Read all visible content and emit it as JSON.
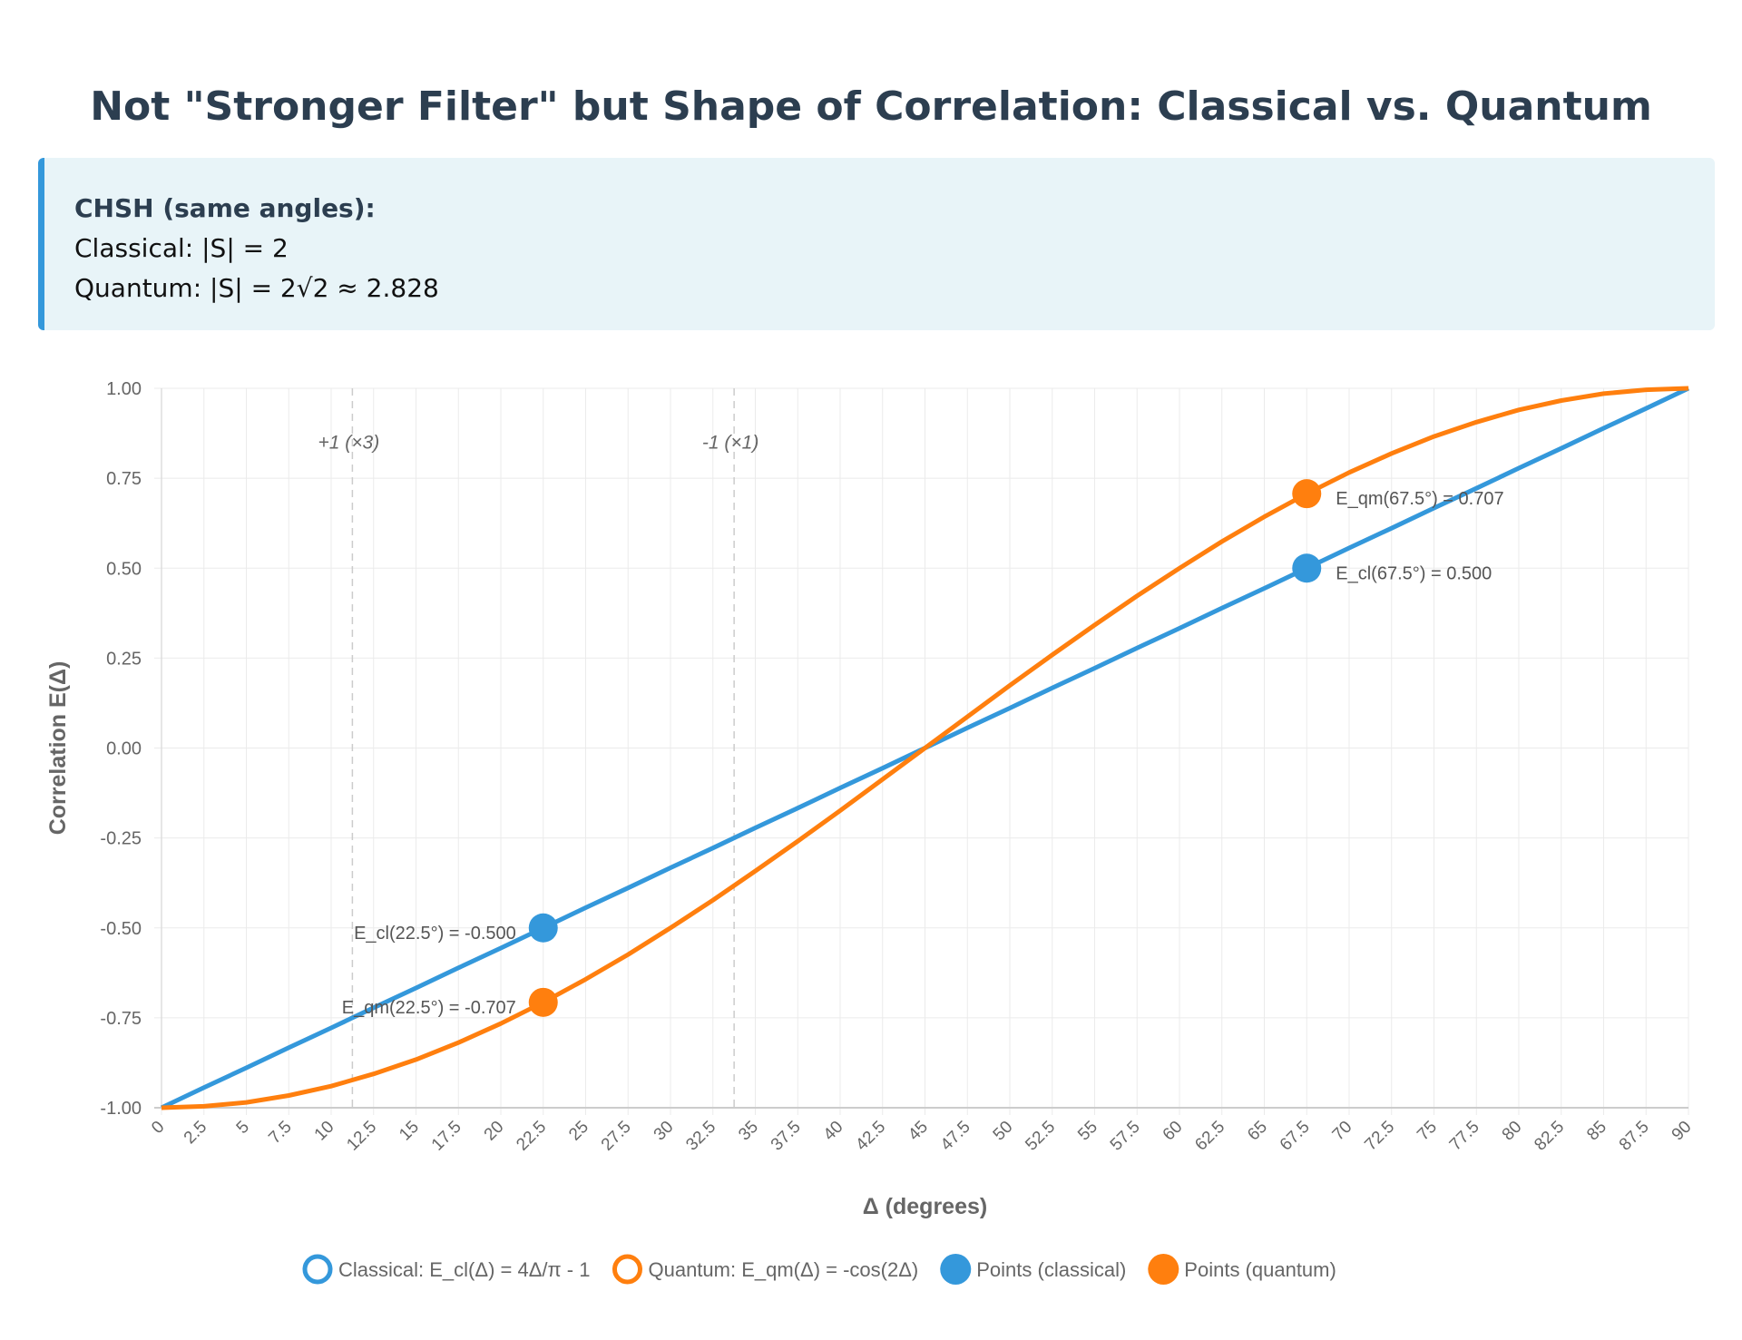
{
  "title": "Not \"Stronger Filter\" but Shape of Correlation: Classical vs. Quantum",
  "info_box": {
    "heading": "CHSH (same angles):",
    "lines": [
      "Classical: |S| = 2",
      "Quantum: |S| = 2√2 ≈ 2.828"
    ]
  },
  "colors": {
    "classical": "#3498db",
    "quantum": "#ff7f0e",
    "info_accent": "#3498db",
    "info_bg": "#e8f4f8"
  },
  "chart_data": {
    "type": "line",
    "xlabel": "Δ (degrees)",
    "ylabel": "Correlation E(Δ)",
    "xlim": [
      0,
      90
    ],
    "ylim": [
      -1,
      1
    ],
    "grid": true,
    "legend_position": "bottom",
    "x_ticks": [
      "0",
      "2.5",
      "5",
      "7.5",
      "10",
      "12.5",
      "15",
      "17.5",
      "20",
      "22.5",
      "25",
      "27.5",
      "30",
      "32.5",
      "35",
      "37.5",
      "40",
      "42.5",
      "45",
      "47.5",
      "50",
      "52.5",
      "55",
      "57.5",
      "60",
      "62.5",
      "65",
      "67.5",
      "70",
      "72.5",
      "75",
      "77.5",
      "80",
      "82.5",
      "85",
      "87.5",
      "90"
    ],
    "y_ticks": [
      "-1.00",
      "-0.75",
      "-0.50",
      "-0.25",
      "0.00",
      "0.25",
      "0.50",
      "0.75",
      "1.00"
    ],
    "x": [
      0,
      2.5,
      5,
      7.5,
      10,
      12.5,
      15,
      17.5,
      20,
      22.5,
      25,
      27.5,
      30,
      32.5,
      35,
      37.5,
      40,
      42.5,
      45,
      47.5,
      50,
      52.5,
      55,
      57.5,
      60,
      62.5,
      65,
      67.5,
      70,
      72.5,
      75,
      77.5,
      80,
      82.5,
      85,
      87.5,
      90
    ],
    "series": [
      {
        "name": "Classical: E_cl(Δ) = 4Δ/π - 1",
        "color": "#3498db",
        "values": [
          -1,
          -0.944,
          -0.889,
          -0.833,
          -0.778,
          -0.722,
          -0.667,
          -0.611,
          -0.556,
          -0.5,
          -0.444,
          -0.389,
          -0.333,
          -0.278,
          -0.222,
          -0.167,
          -0.111,
          -0.056,
          0,
          0.056,
          0.111,
          0.167,
          0.222,
          0.278,
          0.333,
          0.389,
          0.444,
          0.5,
          0.556,
          0.611,
          0.667,
          0.722,
          0.778,
          0.833,
          0.889,
          0.944,
          1
        ]
      },
      {
        "name": "Quantum: E_qm(Δ) = -cos(2Δ)",
        "color": "#ff7f0e",
        "values": [
          -1,
          -0.996,
          -0.985,
          -0.966,
          -0.94,
          -0.906,
          -0.866,
          -0.819,
          -0.766,
          -0.707,
          -0.643,
          -0.574,
          -0.5,
          -0.423,
          -0.342,
          -0.259,
          -0.174,
          -0.087,
          0,
          0.087,
          0.174,
          0.259,
          0.342,
          0.423,
          0.5,
          0.574,
          0.643,
          0.707,
          0.766,
          0.819,
          0.866,
          0.906,
          0.94,
          0.966,
          0.985,
          0.996,
          1
        ]
      }
    ],
    "points": [
      {
        "series": "Points (classical)",
        "color": "#3498db",
        "data": [
          {
            "x": 22.5,
            "y": -0.5,
            "label": "E_cl(22.5°) = -0.500",
            "side": "left"
          },
          {
            "x": 67.5,
            "y": 0.5,
            "label": "E_cl(67.5°) = 0.500",
            "side": "right"
          }
        ]
      },
      {
        "series": "Points (quantum)",
        "color": "#ff7f0e",
        "data": [
          {
            "x": 22.5,
            "y": -0.707,
            "label": "E_qm(22.5°) = -0.707",
            "side": "left"
          },
          {
            "x": 67.5,
            "y": 0.707,
            "label": "E_qm(67.5°) = 0.707",
            "side": "right"
          }
        ]
      }
    ],
    "vlines": [
      {
        "x": 11.25,
        "label": "+1 (×3)",
        "label_y": 0.85
      },
      {
        "x": 33.75,
        "label": "-1 (×1)",
        "label_y": 0.85
      }
    ],
    "legend": [
      {
        "label": "Classical: E_cl(Δ) = 4Δ/π - 1",
        "color": "#3498db",
        "style": "ring"
      },
      {
        "label": "Quantum: E_qm(Δ) = -cos(2Δ)",
        "color": "#ff7f0e",
        "style": "ring"
      },
      {
        "label": "Points (classical)",
        "color": "#3498db",
        "style": "dot"
      },
      {
        "label": "Points (quantum)",
        "color": "#ff7f0e",
        "style": "dot"
      }
    ]
  }
}
